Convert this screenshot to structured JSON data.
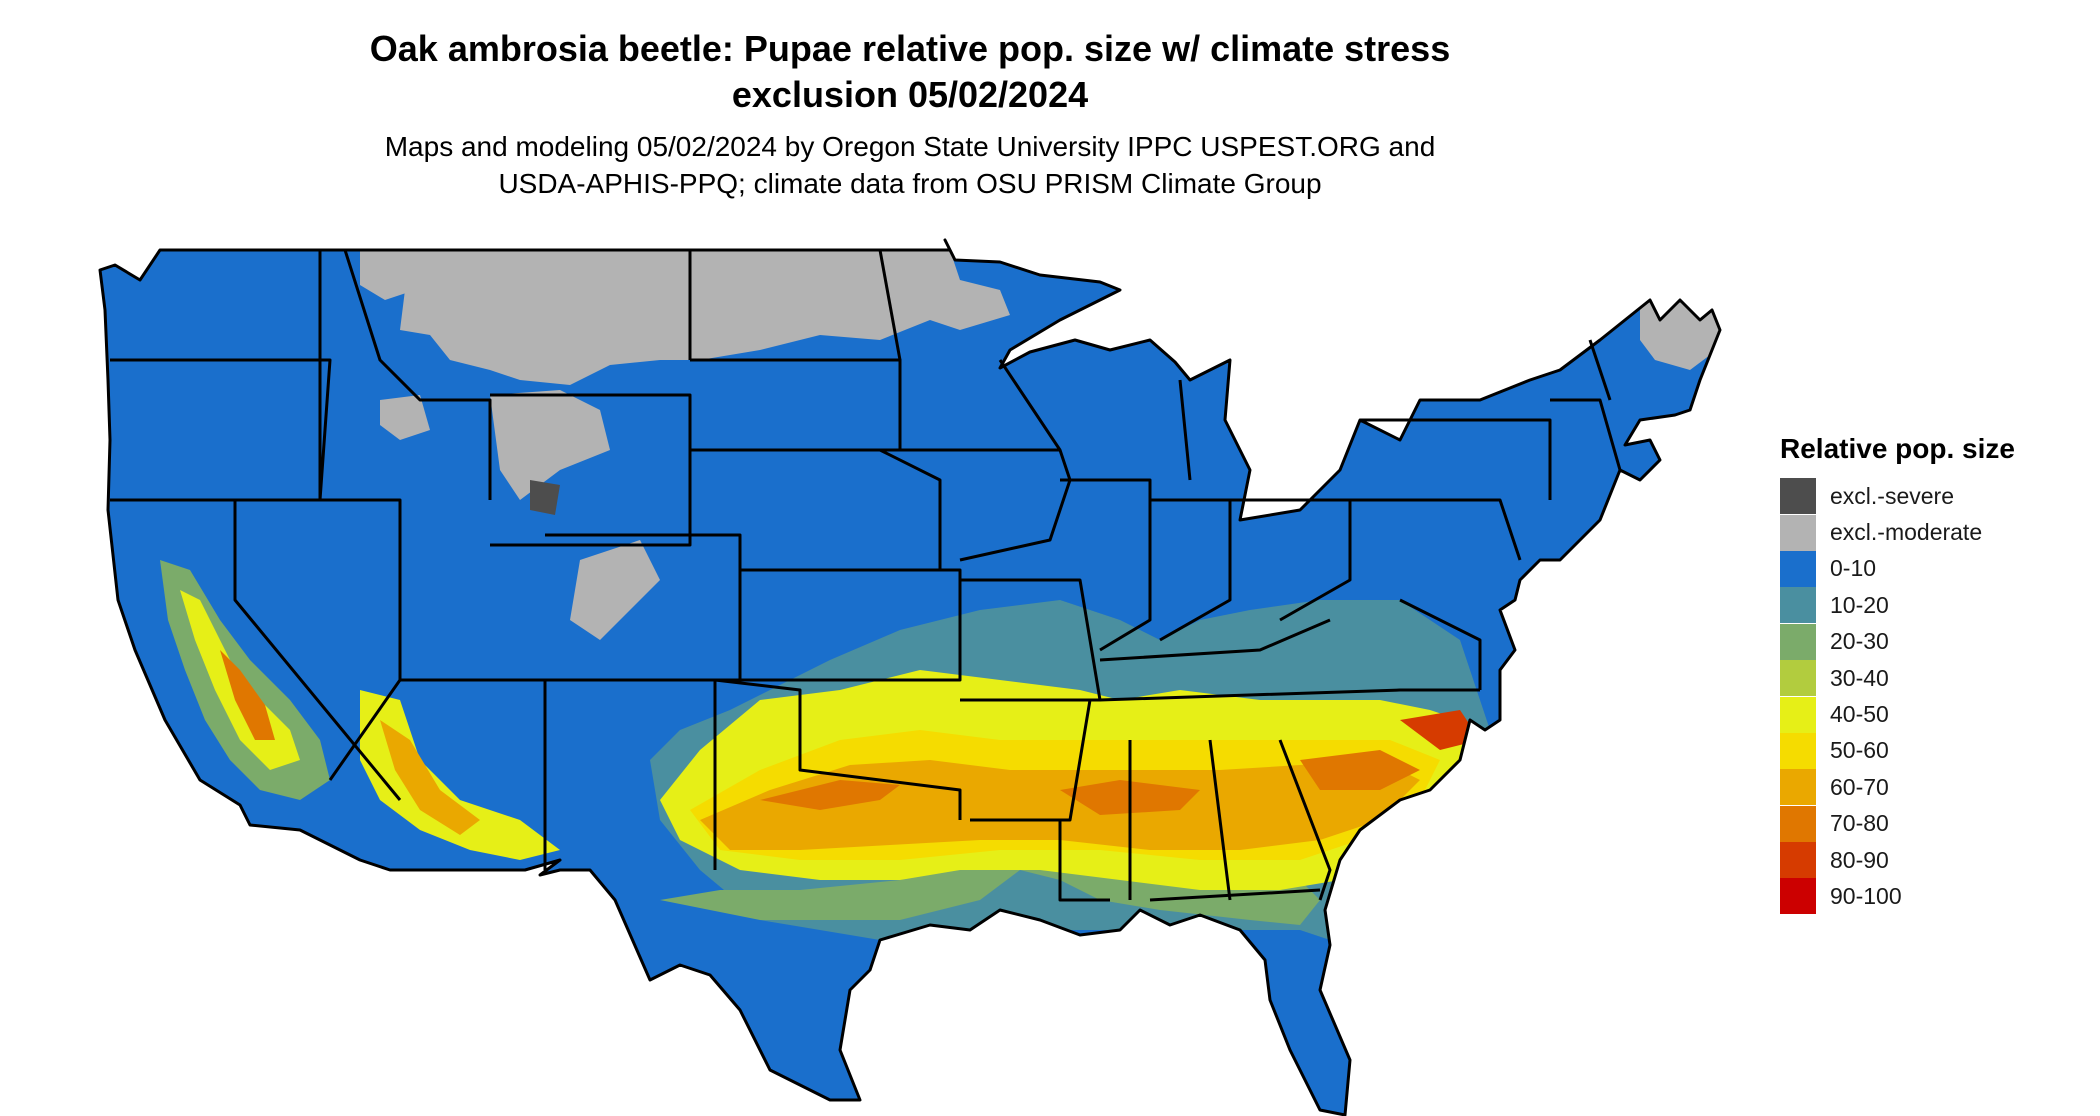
{
  "title": {
    "line1": "Oak ambrosia beetle: Pupae relative pop. size w/ climate stress",
    "line2": "exclusion 05/02/2024"
  },
  "subtitle": {
    "line1": "Maps and modeling 05/02/2024 by Oregon State University IPPC USPEST.ORG and",
    "line2": "USDA-APHIS-PPQ; climate data from OSU PRISM Climate Group"
  },
  "legend": {
    "title": "Relative pop. size",
    "items": [
      {
        "label": "excl.-severe",
        "color": "#4d4d4d"
      },
      {
        "label": "excl.-moderate",
        "color": "#b3b3b3"
      },
      {
        "label": "0-10",
        "color": "#1a6fcc"
      },
      {
        "label": "10-20",
        "color": "#4a8fa0"
      },
      {
        "label": "20-30",
        "color": "#7bab6a"
      },
      {
        "label": "30-40",
        "color": "#b2cc3e"
      },
      {
        "label": "40-50",
        "color": "#e6ef17"
      },
      {
        "label": "50-60",
        "color": "#f5dc00"
      },
      {
        "label": "60-70",
        "color": "#eaa800"
      },
      {
        "label": "70-80",
        "color": "#e07700"
      },
      {
        "label": "80-90",
        "color": "#d63b00"
      },
      {
        "label": "90-100",
        "color": "#cc0000"
      }
    ]
  },
  "map": {
    "region": "Contiguous United States",
    "palette": {
      "base": "#1a6fcc",
      "excl_moderate": "#b3b3b3",
      "excl_severe": "#4d4d4d",
      "c10_20": "#4a8fa0",
      "c20_30": "#7bab6a",
      "c30_40": "#b2cc3e",
      "c40_50": "#e6ef17",
      "c50_60": "#f5dc00",
      "c60_70": "#eaa800",
      "c70_80": "#e07700",
      "c80_90": "#d63b00",
      "border": "#000000"
    }
  }
}
